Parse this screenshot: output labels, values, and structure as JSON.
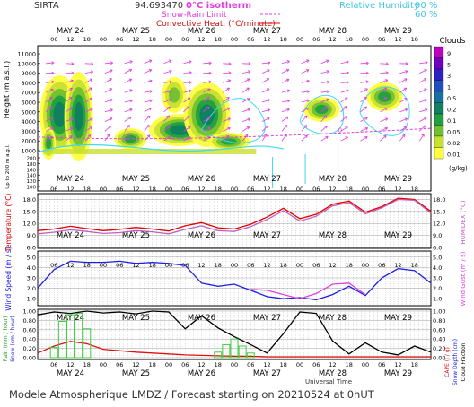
{
  "header": {
    "station": "SIRTA",
    "coords": "94.693470",
    "legend_left": [
      "0°C isotherm",
      "Snow-Rain Limit",
      "Convective Heat. (°C/minute)"
    ],
    "legend_right": [
      "Relative Humidity",
      "90 %",
      "60 %"
    ],
    "legend_colors": {
      "isotherm": "#e040e0",
      "snow_rain": "#e040e0",
      "convective": "#d01010",
      "rh": "#40e0f0"
    }
  },
  "footer": {
    "text": "Modele Atmospherique LMDZ / Forecast starting on 20210524 at 0hUT",
    "universal_time": "Universal Time"
  },
  "time_axis": {
    "hour_ticks": [
      "06",
      "12",
      "18",
      "00",
      "06",
      "12",
      "18",
      "00",
      "06",
      "12",
      "18",
      "00",
      "06",
      "12",
      "18",
      "00",
      "06",
      "12",
      "18",
      "00",
      "06",
      "12",
      "18"
    ],
    "days": [
      "MAY 24",
      "MAY 25",
      "MAY 26",
      "MAY 27",
      "MAY 28",
      "MAY 29"
    ]
  },
  "chart_data": [
    {
      "type": "heatmap",
      "panel": "clouds",
      "ylabel_main": "Height (m a.s.l.)",
      "ylabel_low": "Up to 200 m a.g.l.",
      "y_ticks": [
        "11000",
        "10000",
        "9000",
        "8000",
        "7000",
        "6000",
        "5000",
        "4000",
        "3000",
        "2000",
        "1000",
        "200",
        "180",
        "160",
        "140",
        "120",
        "100"
      ],
      "colorbar_title": "Clouds",
      "colorbar_unit": "(g/kg)",
      "colorbar_labels": [
        "9",
        "5",
        "3",
        "1",
        "0.5",
        "0.2",
        "0.1",
        "0.05",
        "0.02",
        "0.01"
      ],
      "colorbar_colors": [
        "#c000c0",
        "#7000c0",
        "#3020c0",
        "#2050c0",
        "#1870a0",
        "#108060",
        "#20a040",
        "#70c030",
        "#c8e030",
        "#ffff40"
      ],
      "isotherm_label": "0"
    },
    {
      "type": "line",
      "panel": "temperature",
      "ylabel": "Temperature (°C)",
      "ylabel_right": "HUMIDEX (°C)",
      "y_ticks": [
        "18.0",
        "15.0",
        "12.0",
        "9.0",
        "6.0"
      ],
      "ylim": [
        6,
        19
      ],
      "series": [
        {
          "name": "Temperature",
          "color": "#e00000",
          "x": [
            0,
            6,
            12,
            18,
            24,
            30,
            36,
            42,
            48,
            54,
            60,
            66,
            72,
            78,
            84,
            90,
            96,
            102,
            108,
            114,
            120,
            126,
            132,
            138,
            144
          ],
          "values": [
            10.2,
            10.6,
            11.3,
            10.7,
            10.2,
            10.5,
            11.0,
            10.6,
            10.1,
            11.4,
            12.2,
            10.9,
            10.6,
            11.8,
            13.6,
            15.8,
            13.2,
            14.3,
            16.8,
            17.6,
            14.8,
            16.2,
            18.3,
            18.0,
            15.0
          ]
        },
        {
          "name": "Humidex",
          "color": "#c060c0",
          "x": [
            0,
            6,
            12,
            18,
            24,
            30,
            36,
            42,
            48,
            54,
            60,
            66,
            72,
            78,
            84,
            90,
            96,
            102,
            108,
            114,
            120,
            126,
            132,
            138,
            144
          ],
          "values": [
            9.4,
            9.8,
            10.4,
            10.0,
            9.5,
            9.7,
            10.2,
            9.9,
            9.4,
            10.5,
            11.4,
            10.2,
            10.0,
            11.2,
            13.0,
            15.2,
            12.6,
            13.8,
            16.4,
            17.2,
            14.4,
            15.9,
            18.0,
            17.8,
            14.6
          ]
        }
      ]
    },
    {
      "type": "line",
      "panel": "wind",
      "ylabel": "Wind Speed (m / s)",
      "ylabel_right": "Wind Gust (m / s)",
      "y_ticks": [
        "5.0",
        "4.0",
        "3.0",
        "2.0",
        "1.0"
      ],
      "ylim": [
        0.5,
        5.5
      ],
      "series": [
        {
          "name": "Wind Speed",
          "color": "#2020e0",
          "x": [
            0,
            6,
            12,
            18,
            24,
            30,
            36,
            42,
            48,
            54,
            60,
            66,
            72,
            78,
            84,
            90,
            96,
            102,
            108,
            114,
            120,
            126,
            132,
            138,
            144
          ],
          "values": [
            2.0,
            3.8,
            4.6,
            4.5,
            4.5,
            4.6,
            4.4,
            4.5,
            4.4,
            4.2,
            2.5,
            2.2,
            2.4,
            1.8,
            1.2,
            1.0,
            1.1,
            0.9,
            1.4,
            2.2,
            1.3,
            3.0,
            3.9,
            3.7,
            2.5
          ]
        },
        {
          "name": "Wind Gust",
          "color": "#e040e0",
          "x": [
            78,
            84,
            90,
            96,
            102,
            108,
            114,
            120
          ],
          "values": [
            1.9,
            1.8,
            1.4,
            1.0,
            1.5,
            2.4,
            2.5,
            1.4
          ]
        }
      ]
    },
    {
      "type": "bar",
      "panel": "precip",
      "ylabel": "Rain (mm / hour)",
      "ylabel2": "Snow (cm / hour)",
      "ylabel_right": "CAPE (J / g)",
      "ylabel_right2": "Snow Depth (cm)",
      "ylabel_right3": "Cloud Fraction",
      "y_ticks": [
        "1.00",
        "0.80",
        "0.60",
        "0.40",
        "0.20",
        "0.00"
      ],
      "ylim": [
        0,
        1
      ],
      "rain_bars": {
        "color": "#40d040",
        "x": [
          6,
          9,
          12,
          15,
          18,
          66,
          69,
          72,
          75,
          78
        ],
        "values": [
          0.22,
          0.78,
          0.92,
          0.95,
          0.62,
          0.12,
          0.28,
          0.4,
          0.25,
          0.1
        ]
      },
      "series": [
        {
          "name": "CAPE",
          "color": "#e01010",
          "x": [
            0,
            6,
            12,
            18,
            24,
            30,
            36,
            42,
            48,
            54,
            60,
            66,
            72,
            78,
            84,
            90,
            96,
            102,
            108,
            114,
            120,
            126,
            132,
            138,
            144
          ],
          "values": [
            0.1,
            0.25,
            0.35,
            0.3,
            0.18,
            0.15,
            0.12,
            0.1,
            0.08,
            0.06,
            0.05,
            0.04,
            0.03,
            0.03,
            0.02,
            0.02,
            0.02,
            0.02,
            0.02,
            0.02,
            0.02,
            0.02,
            0.02,
            0.02,
            0.02
          ]
        },
        {
          "name": "Cloud Fraction",
          "color": "#000000",
          "x": [
            0,
            6,
            12,
            18,
            24,
            30,
            36,
            42,
            48,
            54,
            60,
            66,
            72,
            78,
            84,
            90,
            96,
            102,
            108,
            114,
            120,
            126,
            132,
            138,
            144
          ],
          "values": [
            0.92,
            0.98,
            0.95,
            1.0,
            0.96,
            0.98,
            0.94,
            1.0,
            0.98,
            0.62,
            0.9,
            0.64,
            0.45,
            0.28,
            0.1,
            0.52,
            0.98,
            0.95,
            0.36,
            0.08,
            0.32,
            0.12,
            0.06,
            0.25,
            0.12
          ]
        }
      ]
    }
  ]
}
